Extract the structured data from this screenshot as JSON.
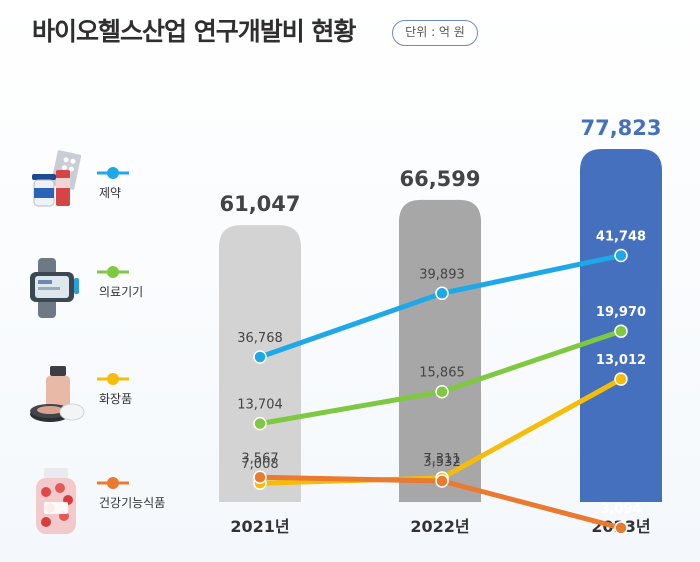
{
  "title": "바이오헬스산업 연구개발비 현황",
  "unit": "단위 : 억 원",
  "colors": {
    "bar_2021": "#d3d3d3",
    "bar_2022": "#a7a7a7",
    "bar_2023": "#4470bd",
    "line_pharma": "#1fa8e8",
    "line_device": "#7ec842",
    "line_cosmetics": "#f5bd0a",
    "line_functional_food": "#ea7a2f"
  },
  "chart_data": {
    "type": "bar",
    "categories": [
      "2021년",
      "2022년",
      "2023년"
    ],
    "totals": [
      61047,
      66599,
      77823
    ],
    "total_labels": [
      "61,047",
      "66,599",
      "77,823"
    ],
    "series": [
      {
        "name": "제약",
        "values": [
          36768,
          39893,
          41748
        ],
        "labels": [
          "36,768",
          "39,893",
          "41,748"
        ]
      },
      {
        "name": "의료기기",
        "values": [
          13704,
          15865,
          19970
        ],
        "labels": [
          "13,704",
          "15,865",
          "19,970"
        ]
      },
      {
        "name": "화장품",
        "values": [
          7008,
          7311,
          13012
        ],
        "labels": [
          "7,008",
          "7,311",
          "13,012"
        ]
      },
      {
        "name": "건강기능식품",
        "values": [
          3567,
          3532,
          3094
        ],
        "labels": [
          "3,567",
          "3,532",
          "3,094"
        ]
      }
    ]
  }
}
